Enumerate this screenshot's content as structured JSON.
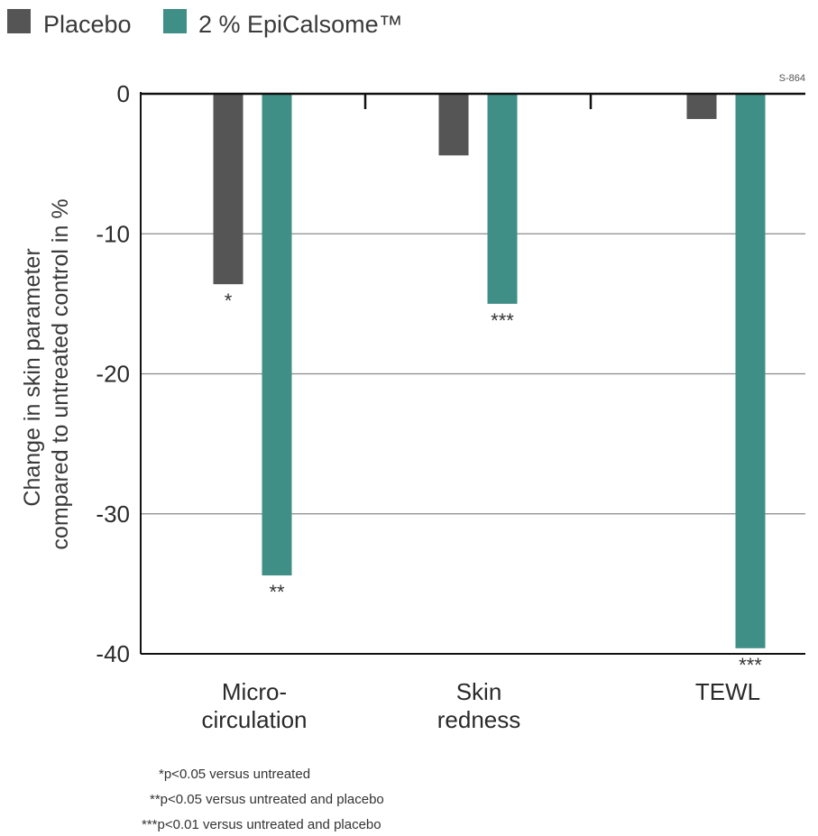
{
  "chart_data": {
    "type": "bar",
    "code": "S-864",
    "categories": [
      [
        "Micro-",
        "circulation"
      ],
      [
        "Skin",
        "redness"
      ],
      [
        "TEWL"
      ]
    ],
    "series": [
      {
        "name": "Placebo",
        "color": "#555555",
        "values": [
          -13.6,
          -4.4,
          -1.8
        ],
        "significance": [
          "*",
          "",
          ""
        ]
      },
      {
        "name": "2 % EpiCalsome™",
        "color": "#3f8f86",
        "values": [
          -34.4,
          -15.0,
          -39.6
        ],
        "significance": [
          "**",
          "***",
          "***"
        ]
      }
    ],
    "ylabel": [
      "Change in skin parameter",
      "compared to untreated control in %"
    ],
    "ylim": [
      -40,
      0
    ],
    "yticks": [
      0,
      -10,
      -20,
      -30,
      -40
    ],
    "grid": true,
    "legend_position": "top-left",
    "footnotes": [
      "*p<0.05 versus untreated",
      "**p<0.05 versus untreated and placebo",
      "***p<0.01 versus untreated and placebo"
    ]
  }
}
